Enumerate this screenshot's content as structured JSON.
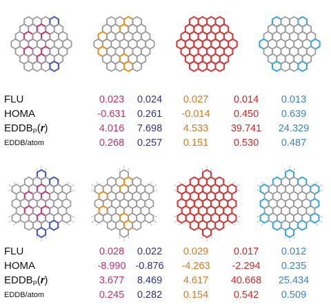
{
  "colors": {
    "c1": "#c0306e",
    "c2": "#2f2f8a",
    "c3": "#d97a1c",
    "c4": "#cc2a2a",
    "c5": "#3a84c0",
    "hl_pink": "#c23a78",
    "hl_blue": "#4a56b8",
    "hl_orange": "#e8901c",
    "hl_red": "#d23a3a",
    "hl_cyan": "#3aa8d8",
    "bond_gray": "#9a9a9a",
    "hydrogen": "#d9d9d9"
  },
  "row_labels": [
    "FLU",
    "HOMA",
    "EDDB",
    "EDDB/atom"
  ],
  "eddb_sub": "P",
  "eddb_arg": "r",
  "panels": [
    {
      "rows": [
        {
          "values": [
            "0.023",
            "0.024",
            "0.027",
            "0.014",
            "0.013"
          ]
        },
        {
          "values": [
            "-0.631",
            "0.261",
            "-0.014",
            "0.450",
            "0.639"
          ]
        },
        {
          "values": [
            "4.016",
            "7.698",
            "4.533",
            "39.741",
            "24.329"
          ]
        },
        {
          "values": [
            "0.268",
            "0.257",
            "0.151",
            "0.530",
            "0.487"
          ]
        }
      ]
    },
    {
      "rows": [
        {
          "values": [
            "0.028",
            "0.022",
            "0.029",
            "0.017",
            "0.012"
          ]
        },
        {
          "values": [
            "-8.990",
            "-0.876",
            "-4.263",
            "-2.294",
            "0.235"
          ]
        },
        {
          "values": [
            "3.677",
            "8.469",
            "4.617",
            "40.668",
            "25.434"
          ]
        },
        {
          "values": [
            "0.245",
            "0.282",
            "0.154",
            "0.542",
            "0.509"
          ]
        }
      ]
    }
  ]
}
